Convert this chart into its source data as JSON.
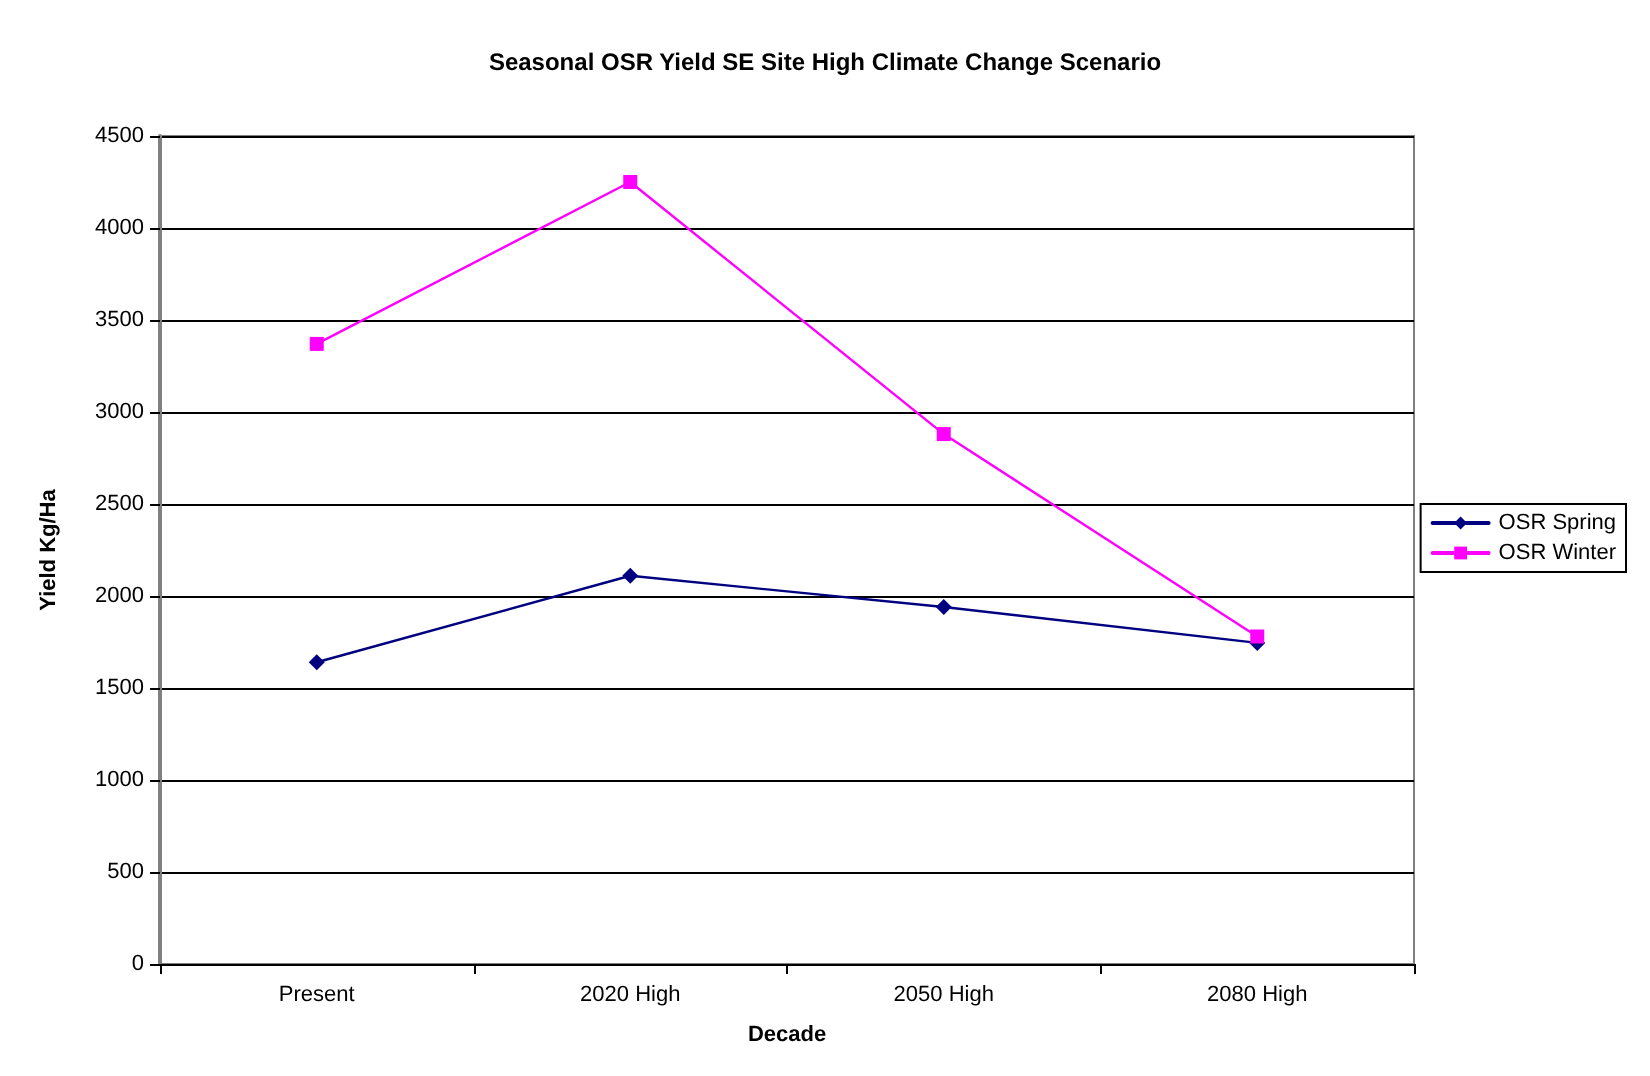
{
  "chart_data": {
    "type": "line",
    "title": "Seasonal OSR Yield SE Site High Climate Change Scenario",
    "xlabel": "Decade",
    "ylabel": "Yield Kg/Ha",
    "categories": [
      "Present",
      "2020 High",
      "2050 High",
      "2080 High"
    ],
    "series": [
      {
        "name": "OSR Spring",
        "color": "#000080",
        "marker": "diamond",
        "values": [
          1640,
          2110,
          1940,
          1745
        ]
      },
      {
        "name": "OSR Winter",
        "color": "#ff00ff",
        "marker": "square",
        "values": [
          3370,
          4250,
          2880,
          1780
        ]
      }
    ],
    "ylim": [
      0,
      4500
    ],
    "yticks": [
      0,
      500,
      1000,
      1500,
      2000,
      2500,
      3000,
      3500,
      4000,
      4500
    ],
    "grid": "y",
    "legend": "right",
    "line_style": "solid"
  }
}
